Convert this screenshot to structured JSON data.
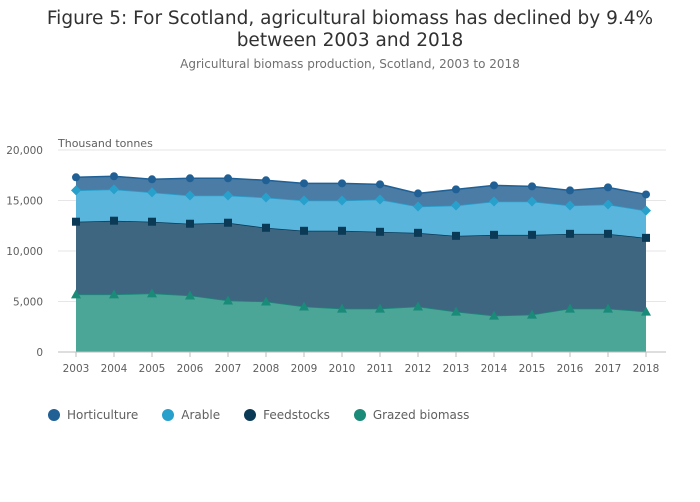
{
  "title": "Figure 5: For Scotland, agricultural biomass has declined by 9.4% between 2003 and 2018",
  "subtitle": "Agricultural biomass production, Scotland, 2003 to 2018",
  "chart_data": {
    "type": "area",
    "stacked": true,
    "title": "Figure 5: For Scotland, agricultural biomass has declined by 9.4% between 2003 and 2018",
    "subtitle": "Agricultural biomass production, Scotland, 2003 to 2018",
    "ylabel": "Thousand tonnes",
    "ylim": [
      0,
      20000
    ],
    "yticks": [
      0,
      5000,
      10000,
      15000,
      20000
    ],
    "ytick_labels": [
      "0",
      "5,000",
      "10,000",
      "15,000",
      "20,000"
    ],
    "x": [
      "2003",
      "2004",
      "2005",
      "2006",
      "2007",
      "2008",
      "2009",
      "2010",
      "2011",
      "2012",
      "2013",
      "2014",
      "2015",
      "2016",
      "2017",
      "2018"
    ],
    "grid": "horizontal",
    "legend_position": "bottom-left",
    "series": [
      {
        "name": "Grazed biomass",
        "color": "#4ca698",
        "marker_color": "#1a8a79",
        "marker": "triangle",
        "values": [
          5700,
          5700,
          5800,
          5600,
          5100,
          5000,
          4500,
          4300,
          4300,
          4500,
          4000,
          3600,
          3700,
          4300,
          4300,
          4000
        ]
      },
      {
        "name": "Feedstocks",
        "color": "#3e6680",
        "marker_color": "#0b3a57",
        "marker": "square",
        "values": [
          7200,
          7300,
          7100,
          7100,
          7700,
          7300,
          7500,
          7700,
          7600,
          7300,
          7500,
          8000,
          7900,
          7400,
          7400,
          7300
        ]
      },
      {
        "name": "Arable",
        "color": "#5ab5dc",
        "marker_color": "#27a0cc",
        "marker": "diamond",
        "values": [
          3100,
          3100,
          2900,
          2800,
          2700,
          3000,
          3000,
          3000,
          3200,
          2600,
          3000,
          3300,
          3300,
          2800,
          2900,
          2700
        ]
      },
      {
        "name": "Horticulture",
        "color": "#4b7ca6",
        "marker_color": "#206095",
        "marker": "circle",
        "values": [
          1300,
          1300,
          1300,
          1700,
          1700,
          1700,
          1700,
          1700,
          1500,
          1300,
          1600,
          1600,
          1500,
          1500,
          1700,
          1600
        ]
      }
    ],
    "cumulative_totals": {
      "Grazed biomass": [
        5700,
        5700,
        5800,
        5600,
        5100,
        5000,
        4500,
        4300,
        4300,
        4500,
        4000,
        3600,
        3700,
        4300,
        4300,
        4000
      ],
      "Feedstocks": [
        12900,
        13000,
        12900,
        12700,
        12800,
        12300,
        12000,
        12000,
        11900,
        11800,
        11500,
        11600,
        11600,
        11700,
        11700,
        11300
      ],
      "Arable": [
        16000,
        16100,
        15800,
        15500,
        15500,
        15300,
        15000,
        15000,
        15100,
        14400,
        14500,
        14900,
        14900,
        14500,
        14600,
        14000
      ],
      "Horticulture": [
        17300,
        17400,
        17100,
        17200,
        17200,
        17000,
        16700,
        16700,
        16600,
        15700,
        16100,
        16500,
        16400,
        16000,
        16300,
        15600
      ]
    }
  },
  "legend": {
    "items": [
      {
        "label": "Horticulture",
        "color": "#206095"
      },
      {
        "label": "Arable",
        "color": "#27a0cc"
      },
      {
        "label": "Feedstocks",
        "color": "#0b3a57"
      },
      {
        "label": "Grazed biomass",
        "color": "#1a8a79"
      }
    ]
  }
}
